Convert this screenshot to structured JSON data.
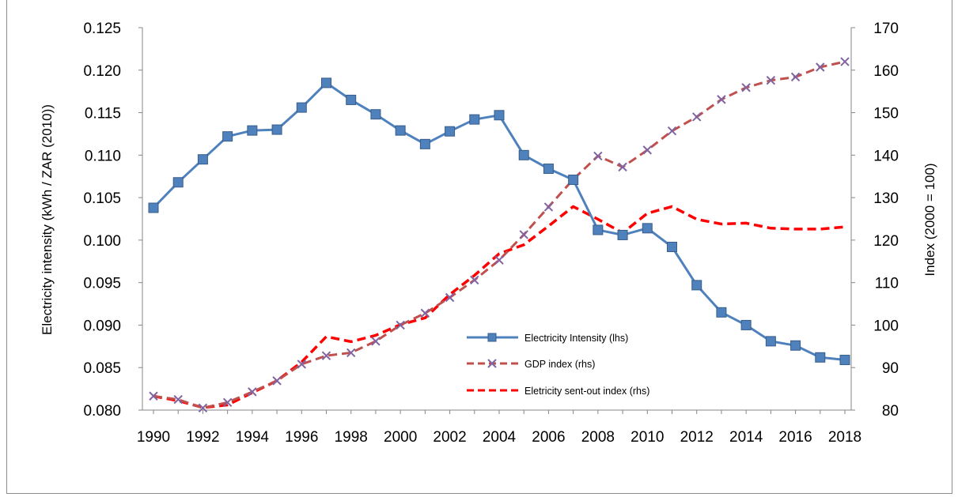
{
  "chart_data": {
    "type": "line",
    "ylabel_left": "Electricity intensity (kWh / ZAR (2010))",
    "ylabel_right": "Index (2000 = 100)",
    "x": [
      1990,
      1991,
      1992,
      1993,
      1994,
      1995,
      1996,
      1997,
      1998,
      1999,
      2000,
      2001,
      2002,
      2003,
      2004,
      2005,
      2006,
      2007,
      2008,
      2009,
      2010,
      2011,
      2012,
      2013,
      2014,
      2015,
      2016,
      2017,
      2018
    ],
    "x_ticks": [
      "1990",
      "1992",
      "1994",
      "1996",
      "1998",
      "2000",
      "2002",
      "2004",
      "2006",
      "2008",
      "2010",
      "2012",
      "2014",
      "2016",
      "2018"
    ],
    "ylim_left": [
      0.08,
      0.125
    ],
    "y_ticks_left": [
      "0.080",
      "0.085",
      "0.090",
      "0.095",
      "0.100",
      "0.105",
      "0.110",
      "0.115",
      "0.120",
      "0.125"
    ],
    "ylim_right": [
      80,
      170
    ],
    "y_ticks_right": [
      "80",
      "90",
      "100",
      "110",
      "120",
      "130",
      "140",
      "150",
      "160",
      "170"
    ],
    "series": [
      {
        "name": "Electricity Intensity (lhs)",
        "axis": "left",
        "color": "#4f81bd",
        "marker": "square",
        "values": [
          0.1038,
          0.1068,
          0.1095,
          0.1122,
          0.1129,
          0.113,
          0.1156,
          0.1185,
          0.1165,
          0.1148,
          0.1129,
          0.1113,
          0.1128,
          0.1142,
          0.1147,
          0.11,
          0.1084,
          0.1071,
          0.1012,
          0.1006,
          0.1014,
          0.0992,
          0.0947,
          0.0915,
          0.09,
          0.0881,
          0.0876,
          0.0862,
          0.0859
        ]
      },
      {
        "name": "GDP index (rhs)",
        "axis": "right",
        "color": "#c0504d",
        "marker": "x",
        "values": [
          83.3,
          82.5,
          80.5,
          81.8,
          84.3,
          86.9,
          90.8,
          92.8,
          93.5,
          96.2,
          100.0,
          102.8,
          106.5,
          110.6,
          115.3,
          121.3,
          127.8,
          134.3,
          139.8,
          137.2,
          141.2,
          145.7,
          149.0,
          153.1,
          155.9,
          157.6,
          158.4,
          160.7,
          162.0
        ]
      },
      {
        "name": "Eletricity sent-out index (rhs)",
        "axis": "right",
        "color": "#ff0000",
        "marker": "none",
        "dashed": true,
        "values": [
          83.3,
          82.2,
          80.6,
          81.2,
          84.1,
          86.9,
          91.3,
          97.3,
          96.1,
          97.6,
          100.1,
          101.7,
          107.2,
          111.7,
          116.8,
          118.9,
          123.3,
          127.9,
          124.9,
          121.7,
          126.3,
          127.9,
          124.9,
          123.8,
          124.0,
          122.8,
          122.6,
          122.6,
          123.1
        ]
      }
    ],
    "legend_position": "center-right inside plot",
    "grid": false
  }
}
